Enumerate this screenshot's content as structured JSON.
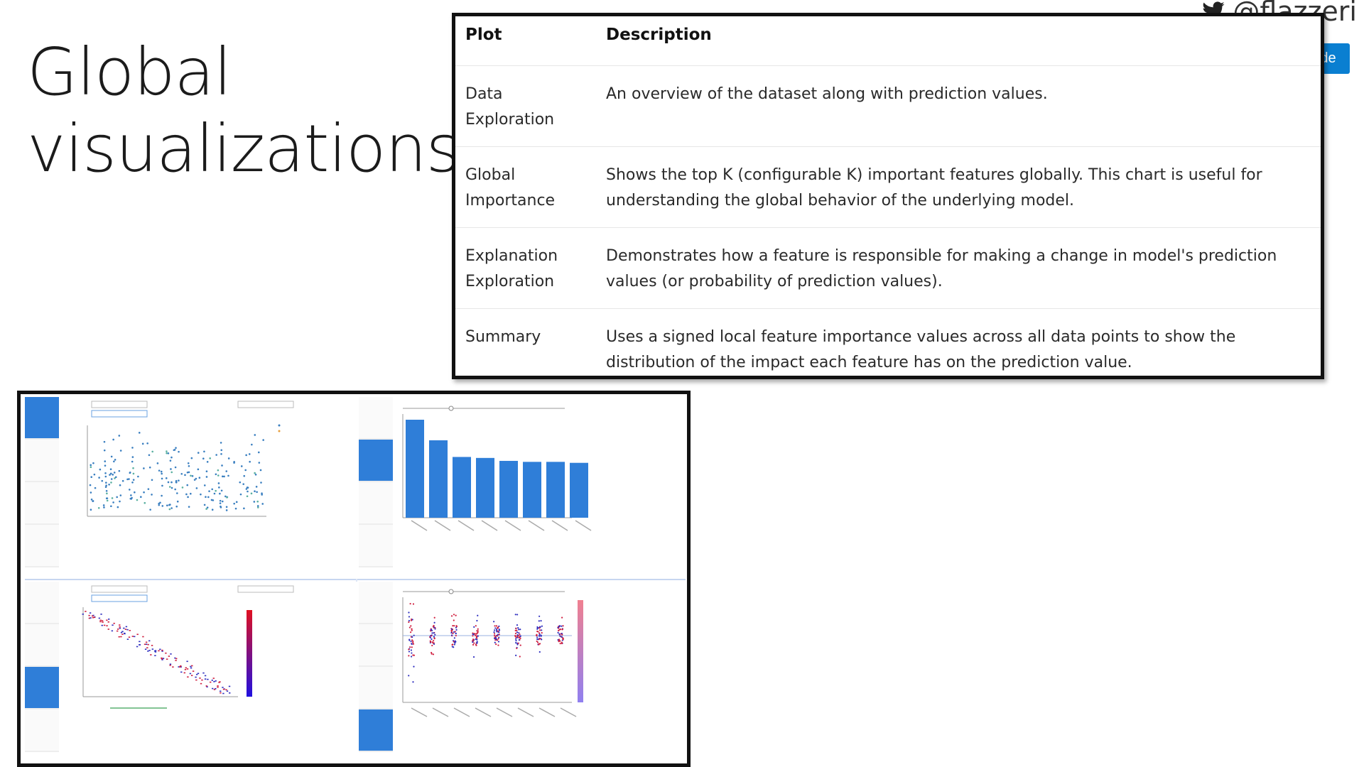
{
  "slide": {
    "title_line1": "Global",
    "title_line2": "visualizations"
  },
  "twitter": {
    "icon": "twitter-bird-icon",
    "handle": "@flazzeri"
  },
  "clip_button": {
    "label": "Clip slide",
    "icon": "clip-icon",
    "color": "#0a7fd1"
  },
  "table": {
    "headers": [
      "Plot",
      "Description"
    ],
    "rows": [
      {
        "plot_line1": "Data",
        "plot_line2": "Exploration",
        "description": "An overview of the dataset along with prediction values."
      },
      {
        "plot_line1": "Global",
        "plot_line2": "Importance",
        "description": "Shows the top K (configurable K) important features globally. This chart is useful for understanding the global behavior of the underlying model."
      },
      {
        "plot_line1": "Explanation",
        "plot_line2": "Exploration",
        "description": "Demonstrates how a feature is responsible for making a change in model's prediction values (or probability of prediction values)."
      },
      {
        "plot_line1": "Summary",
        "plot_line2": "",
        "description": "Uses a signed local feature importance values across all data points to show the distribution of the impact each feature has on the prediction value."
      }
    ]
  },
  "dashboard": {
    "accent_color": "#2f7ed8",
    "panels": [
      {
        "name": "data-exploration",
        "active_tab": 0,
        "type": "scatter"
      },
      {
        "name": "global-importance",
        "active_tab": 1,
        "type": "bar",
        "relative_values": [
          1.0,
          0.79,
          0.62,
          0.61,
          0.58,
          0.57,
          0.57,
          0.56
        ]
      },
      {
        "name": "explanation-exploration",
        "active_tab": 2,
        "type": "scatter"
      },
      {
        "name": "summary-importance",
        "active_tab": 3,
        "type": "swarm"
      }
    ]
  }
}
